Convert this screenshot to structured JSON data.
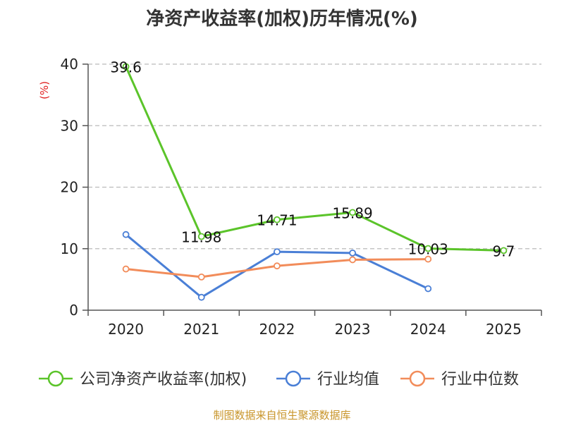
{
  "chart_data": {
    "type": "line",
    "title": "净资产收益率(加权)历年情况(%)",
    "ylabel": "(%)",
    "xlabel": "",
    "categories": [
      "2020",
      "2021",
      "2022",
      "2023",
      "2024",
      "2025"
    ],
    "ylim": [
      0,
      40
    ],
    "yticks": [
      0,
      10,
      20,
      30,
      40
    ],
    "grid": true,
    "legend_position": "bottom",
    "series": [
      {
        "name": "公司净资产收益率(加权)",
        "color": "#5bc42a",
        "values": [
          39.6,
          11.98,
          14.71,
          15.89,
          10.03,
          9.7
        ],
        "labels": [
          "39.6",
          "11.98",
          "14.71",
          "15.89",
          "10.03",
          "9.7"
        ]
      },
      {
        "name": "行业均值",
        "color": "#4a7fd6",
        "values": [
          12.3,
          2.1,
          9.5,
          9.3,
          3.5,
          null
        ]
      },
      {
        "name": "行业中位数",
        "color": "#f28c5a",
        "values": [
          6.7,
          5.4,
          7.2,
          8.2,
          8.3,
          null
        ]
      }
    ]
  },
  "source": "制图数据来自恒生聚源数据库",
  "colors": {
    "axis": "#555555",
    "grid": "#bbbbbb",
    "ylabel": "#e02020",
    "source": "#c8952a"
  }
}
